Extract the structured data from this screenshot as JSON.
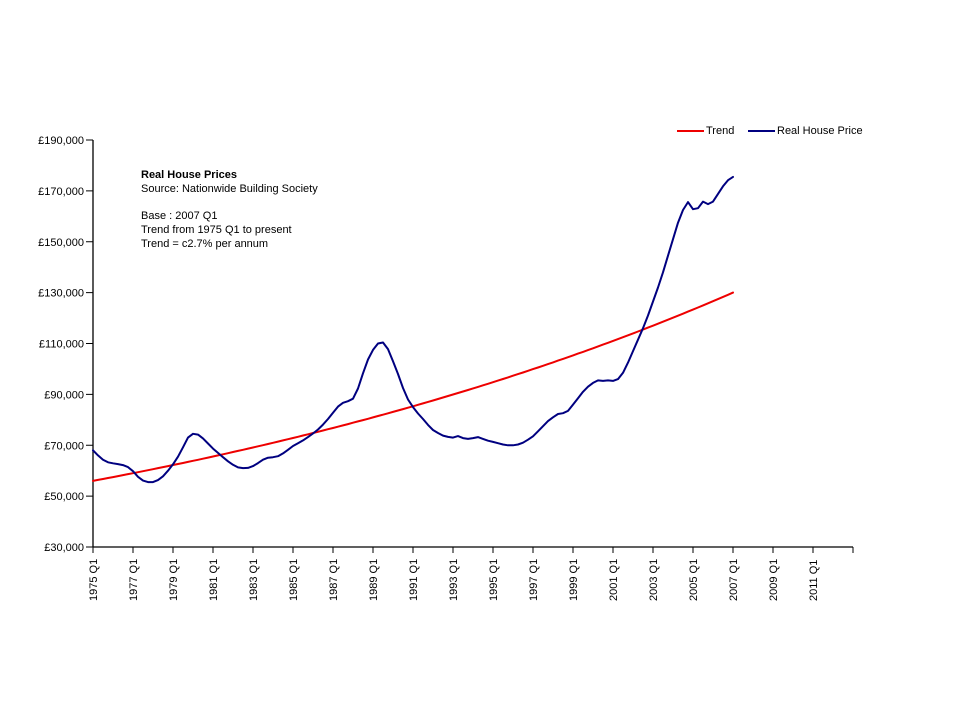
{
  "annotation": {
    "title": "Real House Prices",
    "source": "Source: Nationwide Building Society",
    "base": "Base : 2007 Q1",
    "trend_note1": "Trend from 1975 Q1 to present",
    "trend_note2": "Trend = c2.7% per annum"
  },
  "legend": {
    "trend_label": "Trend",
    "price_label": "Real House Price"
  },
  "colors": {
    "trend": "#ee0000",
    "price": "#000080",
    "axis": "#000000"
  },
  "chart_data": {
    "type": "line",
    "title": "Real House Prices",
    "source": "Nationwide Building Society",
    "grid": false,
    "legend_position": "top-right",
    "x_axis": {
      "tick_labels": [
        "1975 Q1",
        "1977 Q1",
        "1979 Q1",
        "1981 Q1",
        "1983 Q1",
        "1985 Q1",
        "1987 Q1",
        "1989 Q1",
        "1991 Q1",
        "1993 Q1",
        "1995 Q1",
        "1997 Q1",
        "1999 Q1",
        "2001 Q1",
        "2003 Q1",
        "2005 Q1",
        "2007 Q1",
        "2009 Q1",
        "2011 Q1"
      ],
      "quarters_between_labeled_ticks": 8,
      "extra_unlabeled_end_ticks": 1,
      "data_start": "1975 Q1",
      "data_end": "2007 Q1"
    },
    "y_axis": {
      "min": 30000,
      "max": 190000,
      "step": 20000,
      "tick_labels": [
        "£30,000",
        "£50,000",
        "£70,000",
        "£90,000",
        "£110,000",
        "£130,000",
        "£150,000",
        "£170,000",
        "£190,000"
      ]
    },
    "series": [
      {
        "name": "Trend",
        "color": "#ee0000",
        "generate": "exponential",
        "start_value": 56000,
        "end_value": 130000,
        "points": 129,
        "growth_note": "c2.7% per annum"
      },
      {
        "name": "Real House Price",
        "color": "#000080",
        "frequency": "quarterly",
        "start": "1975 Q1",
        "end": "2007 Q1",
        "values": [
          68000,
          66000,
          64300,
          63300,
          62900,
          62600,
          62200,
          61400,
          59800,
          57600,
          56100,
          55500,
          55500,
          56300,
          57800,
          60000,
          62500,
          65500,
          69200,
          73000,
          74500,
          74200,
          72700,
          70700,
          68700,
          67000,
          65300,
          63700,
          62300,
          61300,
          61000,
          61100,
          61800,
          63000,
          64300,
          65100,
          65300,
          65700,
          66800,
          68200,
          69700,
          70800,
          71900,
          73200,
          74600,
          76200,
          78100,
          80300,
          82800,
          85200,
          86700,
          87300,
          88300,
          92300,
          98300,
          103700,
          107500,
          110000,
          110400,
          107800,
          103000,
          98000,
          92500,
          88000,
          85000,
          82500,
          80300,
          78000,
          76000,
          74800,
          73800,
          73300,
          73000,
          73600,
          72800,
          72500,
          72800,
          73200,
          72500,
          71800,
          71300,
          70800,
          70300,
          70000,
          70000,
          70300,
          71000,
          72200,
          73500,
          75500,
          77500,
          79500,
          81000,
          82300,
          82600,
          83500,
          86000,
          88500,
          91000,
          93000,
          94500,
          95500,
          95300,
          95500,
          95300,
          96000,
          98500,
          102500,
          107000,
          111500,
          116000,
          121000,
          126500,
          132000,
          138000,
          144500,
          151000,
          157500,
          162500,
          165600,
          162800,
          163200,
          165800,
          164800,
          165800,
          168800,
          171800,
          174200,
          175500
        ]
      }
    ]
  }
}
